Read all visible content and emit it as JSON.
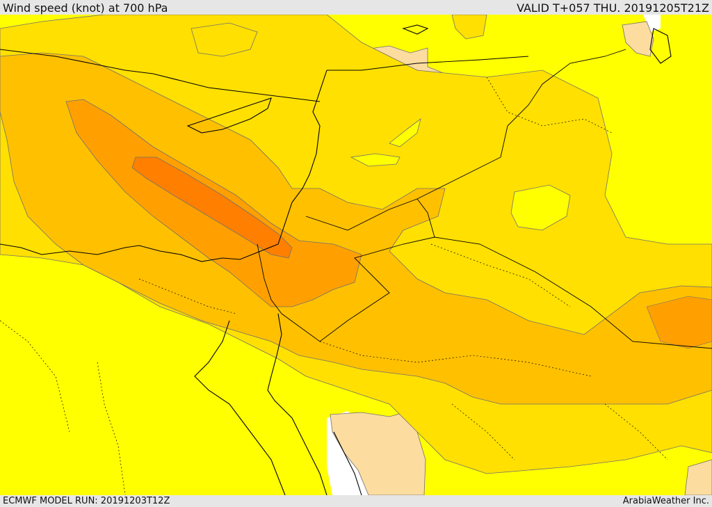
{
  "header": {
    "title": "Wind speed (knot) at 700 hPa",
    "valid": "VALID T+057 THU. 20191205T21Z"
  },
  "footer": {
    "model_run": "ECMWF MODEL RUN: 20191203T12Z",
    "credit": "ArabiaWeather Inc."
  },
  "colors": {
    "wind_bands": [
      "#ffffff",
      "#ffff00",
      "#ffe000",
      "#ffc000",
      "#ffa000",
      "#ff8000",
      "#ff6000"
    ],
    "light_tan": "#fddca0",
    "contour_line": "#707070",
    "border_line": "#000000"
  }
}
